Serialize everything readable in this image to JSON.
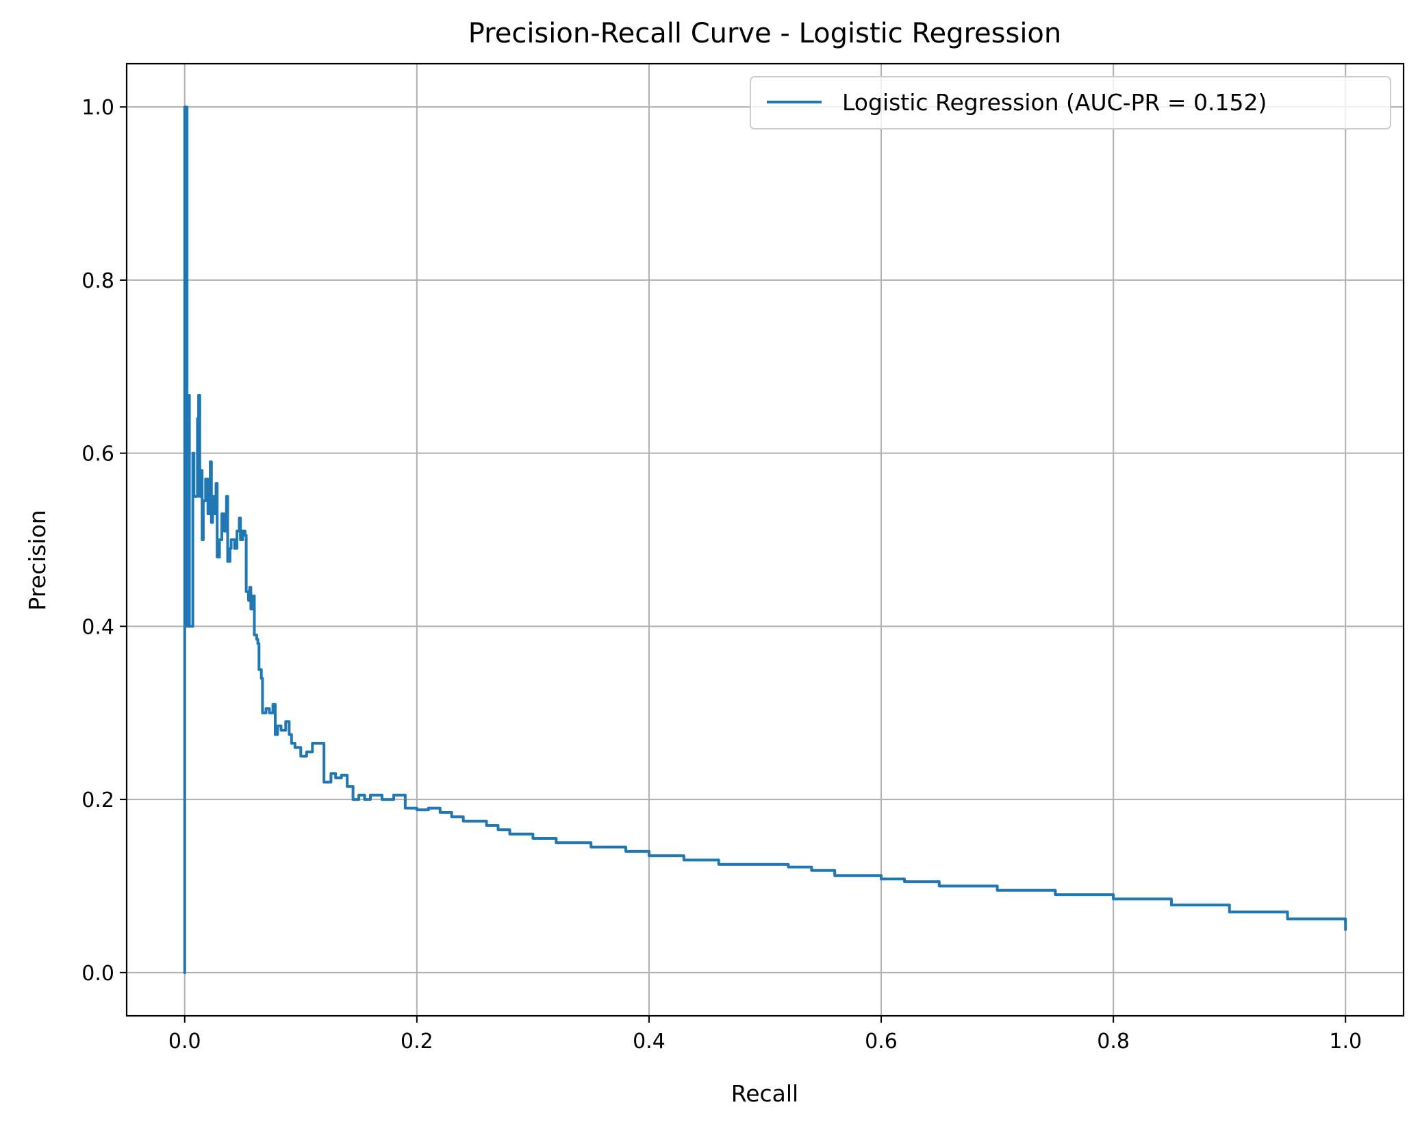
{
  "chart_data": {
    "type": "line",
    "title": "Precision-Recall Curve - Logistic Regression",
    "xlabel": "Recall",
    "ylabel": "Precision",
    "xlim": [
      -0.05,
      1.05
    ],
    "ylim": [
      -0.05,
      1.05
    ],
    "xticks": [
      "0.0",
      "0.2",
      "0.4",
      "0.6",
      "0.8",
      "1.0"
    ],
    "yticks": [
      "0.0",
      "0.2",
      "0.4",
      "0.6",
      "0.8",
      "1.0"
    ],
    "grid": true,
    "legend_position": "top-right",
    "series": [
      {
        "name": "Logistic Regression (AUC-PR = 0.152)",
        "color": "#1f77b4",
        "x": [
          0.0,
          0.0,
          0.0,
          0.002,
          0.002,
          0.004,
          0.004,
          0.007,
          0.008,
          0.011,
          0.012,
          0.013,
          0.014,
          0.015,
          0.016,
          0.018,
          0.02,
          0.022,
          0.023,
          0.024,
          0.026,
          0.027,
          0.028,
          0.03,
          0.032,
          0.034,
          0.036,
          0.037,
          0.039,
          0.04,
          0.043,
          0.045,
          0.047,
          0.048,
          0.05,
          0.052,
          0.053,
          0.055,
          0.056,
          0.057,
          0.058,
          0.06,
          0.062,
          0.063,
          0.064,
          0.066,
          0.067,
          0.07,
          0.073,
          0.076,
          0.078,
          0.08,
          0.083,
          0.087,
          0.09,
          0.092,
          0.095,
          0.1,
          0.105,
          0.11,
          0.115,
          0.12,
          0.126,
          0.13,
          0.135,
          0.14,
          0.145,
          0.15,
          0.155,
          0.16,
          0.17,
          0.18,
          0.19,
          0.2,
          0.21,
          0.22,
          0.23,
          0.24,
          0.25,
          0.26,
          0.27,
          0.28,
          0.3,
          0.32,
          0.35,
          0.38,
          0.4,
          0.43,
          0.46,
          0.5,
          0.52,
          0.54,
          0.56,
          0.6,
          0.62,
          0.65,
          0.7,
          0.75,
          0.8,
          0.85,
          0.9,
          0.95,
          1.0
        ],
        "y": [
          0.0,
          0.5,
          1.0,
          0.5,
          0.4,
          0.667,
          0.4,
          0.6,
          0.55,
          0.64,
          0.667,
          0.55,
          0.58,
          0.5,
          0.545,
          0.57,
          0.53,
          0.59,
          0.52,
          0.55,
          0.53,
          0.565,
          0.48,
          0.5,
          0.53,
          0.51,
          0.55,
          0.475,
          0.49,
          0.5,
          0.49,
          0.51,
          0.525,
          0.5,
          0.51,
          0.505,
          0.44,
          0.43,
          0.445,
          0.42,
          0.435,
          0.39,
          0.385,
          0.38,
          0.35,
          0.34,
          0.3,
          0.305,
          0.3,
          0.31,
          0.275,
          0.285,
          0.28,
          0.29,
          0.275,
          0.265,
          0.26,
          0.25,
          0.255,
          0.265,
          0.265,
          0.22,
          0.23,
          0.225,
          0.228,
          0.215,
          0.2,
          0.205,
          0.2,
          0.205,
          0.2,
          0.205,
          0.19,
          0.188,
          0.19,
          0.185,
          0.18,
          0.175,
          0.175,
          0.17,
          0.165,
          0.16,
          0.155,
          0.15,
          0.145,
          0.14,
          0.135,
          0.13,
          0.125,
          0.125,
          0.122,
          0.118,
          0.112,
          0.108,
          0.105,
          0.1,
          0.095,
          0.09,
          0.085,
          0.078,
          0.07,
          0.062,
          0.05
        ]
      }
    ]
  }
}
